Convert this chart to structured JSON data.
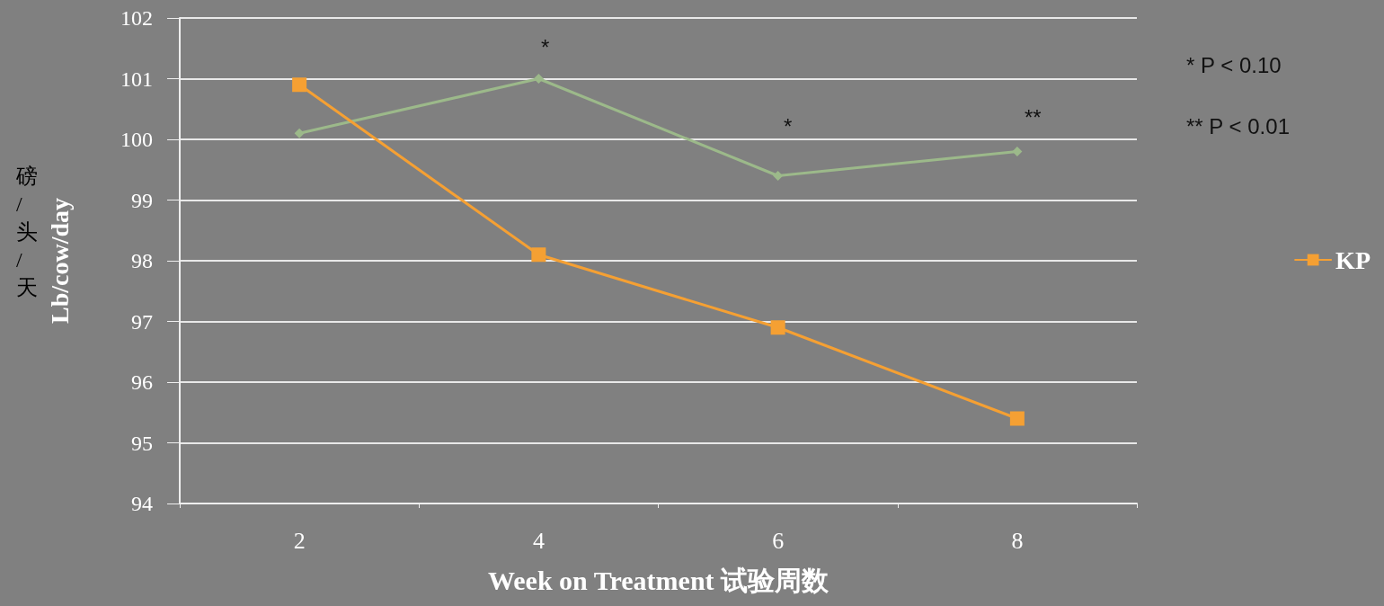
{
  "chart_data": {
    "type": "line",
    "xlabel": "Week on Treatment 试验周数",
    "ylabel": "磅/头/天 Lb/cow/day",
    "categories": [
      "2",
      "4",
      "6",
      "8"
    ],
    "series": [
      {
        "color": "#9cb98a",
        "marker": "diamond",
        "values": [
          100.1,
          101.0,
          99.4,
          99.8
        ]
      },
      {
        "name": "KP",
        "color": "#f5a033",
        "marker": "square",
        "values": [
          100.9,
          98.1,
          96.9,
          95.4
        ]
      }
    ],
    "ylim": [
      94,
      102
    ],
    "yticks": [
      94,
      95,
      96,
      97,
      98,
      99,
      100,
      101,
      102
    ],
    "grid": "y",
    "legend": "right",
    "line_style": "solid",
    "annotations": [
      "*",
      "*",
      "**",
      "* P < 0.10",
      "** P < 0.01"
    ]
  }
}
